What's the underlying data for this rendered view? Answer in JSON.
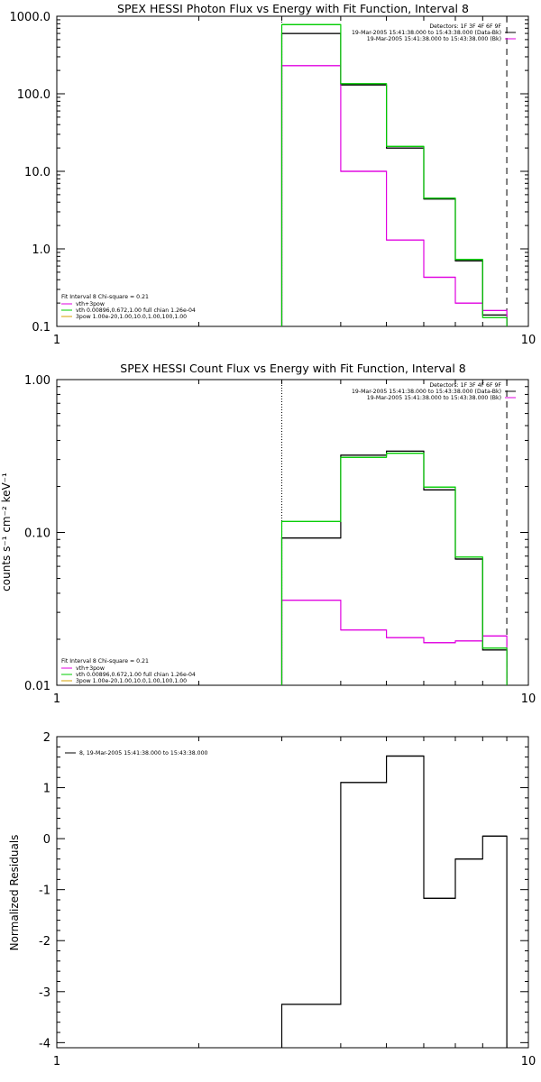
{
  "colors": {
    "black": "#000000",
    "magenta": "#e000e0",
    "green": "#00cc00",
    "orange": "#d4a000"
  },
  "chart_data": [
    {
      "type": "line",
      "title": "SPEX HESSI Photon Flux vs Energy with Fit Function, Interval 8",
      "xlabel": "",
      "ylabel": "",
      "xscale": "log",
      "yscale": "log",
      "xlim": [
        1,
        10
      ],
      "ylim": [
        0.1,
        1000
      ],
      "xticks": [
        "1",
        "10"
      ],
      "yticks": [
        "0.1",
        "1.0",
        "10.0",
        "100.0",
        "1000.0"
      ],
      "vlines": [
        {
          "x": 3.0,
          "style": "dotted",
          "color": "black"
        },
        {
          "x": 9.0,
          "style": "dashed",
          "color": "black"
        }
      ],
      "bin_edges": [
        3.0,
        4.0,
        5.0,
        6.0,
        7.0,
        8.0,
        9.0
      ],
      "series": [
        {
          "values": [
            600,
            130,
            20,
            4.4,
            0.7,
            0.14
          ],
          "color": "black"
        },
        {
          "values": [
            230,
            10,
            1.3,
            0.43,
            0.2,
            0.16
          ],
          "color": "magenta"
        },
        {
          "values": [
            780,
            135,
            21,
            4.5,
            0.73,
            0.13
          ],
          "color": "green"
        }
      ],
      "legend_top": [
        "Detectors: 1F 3F 4F 6F 9F",
        "19-Mar-2005 15:41:38.000 to 15:43:38.000 (Data-Bk)",
        "19-Mar-2005 15:41:38.000 to 15:43:38.000 (Bk)"
      ],
      "legend_bottom": [
        "Fit Interval 8   Chi-square = 0.21",
        "vth+3pow",
        "vth 0.00896,0.672,1.00   full chian 1.26e-04",
        "3pow 1.00e-20,1.00,10.0,1.00,100,1.00"
      ]
    },
    {
      "type": "line",
      "title": "SPEX HESSI Count Flux vs Energy with Fit Function, Interval 8",
      "xlabel": "",
      "ylabel": "counts s⁻¹ cm⁻² keV⁻¹",
      "xscale": "log",
      "yscale": "log",
      "xlim": [
        1,
        10
      ],
      "ylim": [
        0.01,
        1.0
      ],
      "xticks": [
        "1",
        "10"
      ],
      "yticks": [
        "0.01",
        "0.10",
        "1.00"
      ],
      "vlines": [
        {
          "x": 3.0,
          "style": "dotted",
          "color": "black"
        },
        {
          "x": 9.0,
          "style": "dashed",
          "color": "black"
        }
      ],
      "bin_edges": [
        3.0,
        4.0,
        5.0,
        6.0,
        7.0,
        8.0,
        9.0
      ],
      "series": [
        {
          "values": [
            0.092,
            0.32,
            0.34,
            0.19,
            0.067,
            0.017
          ],
          "color": "black"
        },
        {
          "values": [
            0.036,
            0.023,
            0.0205,
            0.019,
            0.0195,
            0.021
          ],
          "color": "magenta"
        },
        {
          "values": [
            0.118,
            0.31,
            0.33,
            0.198,
            0.069,
            0.0175
          ],
          "color": "green"
        }
      ],
      "legend_top": [
        "Detectors: 1F 3F 4F 6F 9F",
        "19-Mar-2005 15:41:38.000 to 15:43:38.000 (Data-Bk)",
        "19-Mar-2005 15:41:38.000 to 15:43:38.000 (Bk)"
      ],
      "legend_bottom": [
        "Fit Interval 8   Chi-square = 0.21",
        "vth+3pow",
        "vth 0.00896,0.672,1.00   full chian 1.26e-04",
        "3pow 1.00e-20,1.00,10.0,1.00,100,1.00"
      ]
    },
    {
      "type": "line",
      "title": "",
      "xlabel": "",
      "ylabel": "Normalized Residuals",
      "xscale": "log",
      "yscale": "linear",
      "xlim": [
        1,
        10
      ],
      "ylim": [
        -4.1,
        2.0
      ],
      "xticks": [
        "1",
        "10"
      ],
      "yticks": [
        "-4",
        "-3",
        "-2",
        "-1",
        "0",
        "1",
        "2"
      ],
      "bin_edges": [
        3.0,
        4.0,
        5.0,
        6.0,
        7.0,
        8.0,
        9.0
      ],
      "series": [
        {
          "values": [
            -3.25,
            1.1,
            1.62,
            -1.17,
            -0.4,
            0.05
          ],
          "color": "black"
        }
      ],
      "legend_top": [
        "8, 19-Mar-2005 15:41:38.000 to 15:43:38.000"
      ]
    }
  ]
}
